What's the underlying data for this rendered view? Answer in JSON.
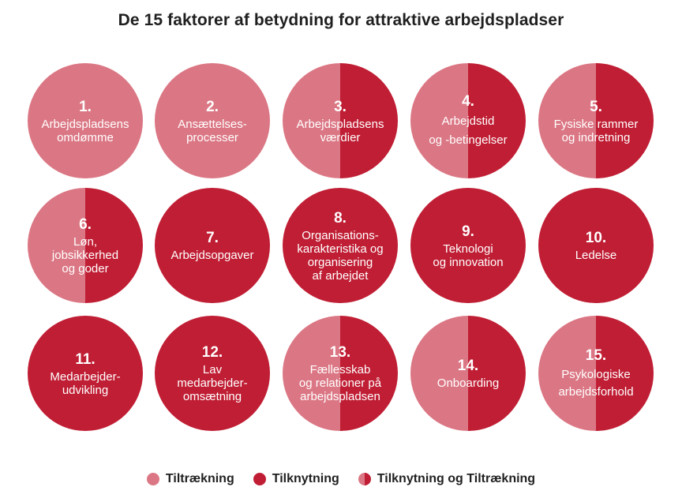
{
  "title": "De 15 faktorer af betydning for attraktive arbejdspladser",
  "colors": {
    "tiltraekning": "#db7784",
    "tilknytning": "#c01e34"
  },
  "factors": [
    {
      "number": "1.",
      "label": "Arbejdspladsens\nomdømme",
      "category": "tiltraekning"
    },
    {
      "number": "2.",
      "label": "Ansættelses-\nprocesser",
      "category": "tiltraekning"
    },
    {
      "number": "3.",
      "label": "Arbejdspladsens\nværdier",
      "category": "begge"
    },
    {
      "number": "4.",
      "label": "Arbejdstid\nog -betingelser",
      "category": "begge"
    },
    {
      "number": "5.",
      "label": "Fysiske rammer\nog indretning",
      "category": "begge"
    },
    {
      "number": "6.",
      "label": "Løn,\njobsikkerhed\nog goder",
      "category": "begge"
    },
    {
      "number": "7.",
      "label": "Arbejdsopgaver",
      "category": "tilknytning"
    },
    {
      "number": "8.",
      "label": "Organisations-\nkarakteristika og\norganisering\naf arbejdet",
      "category": "tilknytning"
    },
    {
      "number": "9.",
      "label": "Teknologi\nog innovation",
      "category": "tilknytning"
    },
    {
      "number": "10.",
      "label": "Ledelse",
      "category": "tilknytning"
    },
    {
      "number": "11.",
      "label": "Medarbejder-\nudvikling",
      "category": "tilknytning"
    },
    {
      "number": "12.",
      "label": "Lav\nmedarbejder-\nomsætning",
      "category": "tilknytning"
    },
    {
      "number": "13.",
      "label": "Fællesskab\nog relationer på\narbejdspladsen",
      "category": "begge"
    },
    {
      "number": "14.",
      "label": "Onboarding",
      "category": "begge"
    },
    {
      "number": "15.",
      "label": "Psykologiske\narbejdsforhold",
      "category": "begge"
    }
  ],
  "legend": {
    "tiltraekning": "Tiltrækning",
    "tilknytning": "Tilknytning",
    "begge": "Tilknytning og Tiltrækning"
  }
}
